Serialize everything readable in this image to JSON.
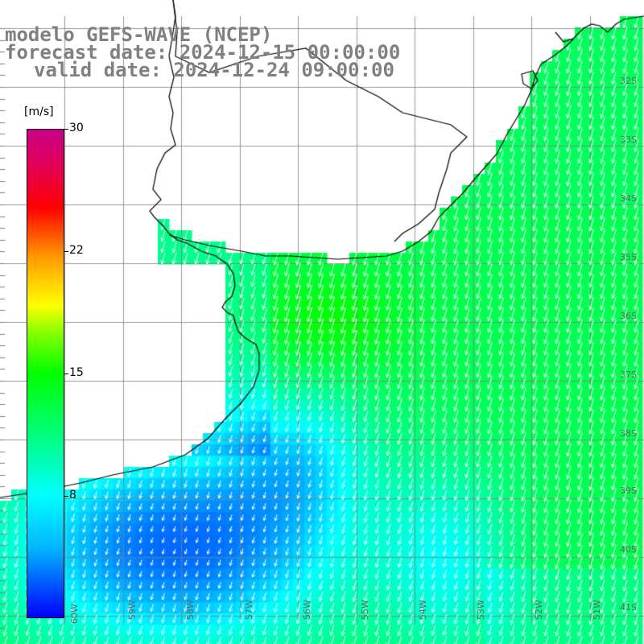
{
  "title": {
    "line1": "modelo GEFS-WAVE (NCEP)",
    "line2": "forecast date: 2024-12-15 00:00:00",
    "line3": "valid date: 2024-12-24 09:00:00",
    "color": "#808080"
  },
  "colorbar": {
    "unit": "[m/s]",
    "min": 0,
    "max": 30,
    "ticks": [
      "30",
      "22",
      "15",
      "8"
    ],
    "colors": [
      "#0000ff",
      "#00b4ff",
      "#00ffff",
      "#00ff80",
      "#00ff00",
      "#80ff00",
      "#ffff00",
      "#ff9900",
      "#ff0000",
      "#c80087"
    ]
  },
  "map": {
    "land_color": "#ffffff",
    "grid_color": "#808080",
    "coastline_color": "#000000",
    "arrow_color": "#ffffff",
    "wind_direction": "from north-northeast",
    "lat_labels": [
      "32S",
      "33S",
      "34S",
      "35S",
      "36S",
      "37S",
      "38S",
      "39S",
      "40S",
      "41S"
    ],
    "lon_labels": [
      "60W",
      "59W",
      "58W",
      "57W",
      "56W",
      "55W",
      "54W",
      "53W",
      "52W",
      "51W"
    ]
  }
}
